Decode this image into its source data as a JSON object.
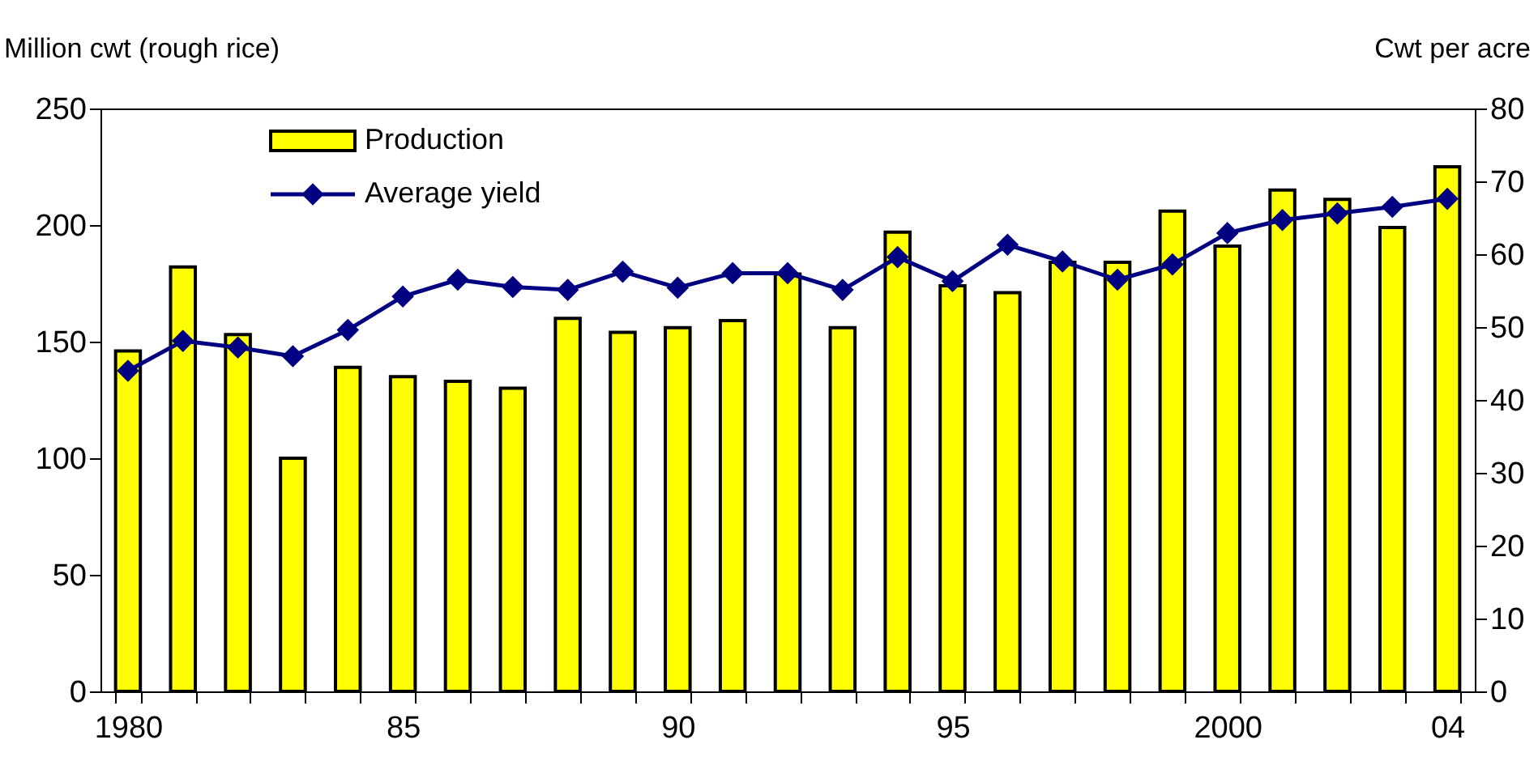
{
  "chart_data": {
    "type": "bar",
    "categories": [
      "1980",
      null,
      null,
      null,
      null,
      "85",
      null,
      null,
      null,
      null,
      "90",
      null,
      null,
      null,
      null,
      "95",
      null,
      null,
      null,
      null,
      "2000",
      null,
      null,
      null,
      "04"
    ],
    "ylabel": "Million cwt (rough rice)",
    "y2label": "Cwt per acre",
    "ylim": [
      0,
      250
    ],
    "yticks": [
      0,
      50,
      100,
      150,
      200,
      250
    ],
    "y2lim": [
      0,
      80
    ],
    "y2ticks": [
      0,
      10,
      20,
      30,
      40,
      50,
      60,
      70,
      80
    ],
    "legend": "top left",
    "marker": "diamond",
    "series": [
      {
        "name": "Production",
        "type": "bar",
        "color": "#ffff00",
        "values": [
          146,
          182,
          153,
          100,
          139,
          135,
          133,
          130,
          160,
          154,
          156,
          159,
          179,
          156,
          197,
          174,
          171,
          184,
          184,
          206,
          191,
          215,
          211,
          199,
          225
        ]
      },
      {
        "name": "Average yield",
        "type": "line",
        "axis": "y2",
        "color": "#000080",
        "values": [
          44.0,
          48.1,
          47.2,
          46.0,
          49.6,
          54.2,
          56.5,
          55.5,
          55.1,
          57.6,
          55.4,
          57.4,
          57.4,
          55.1,
          59.6,
          56.3,
          61.3,
          59.0,
          56.5,
          58.6,
          62.9,
          64.7,
          65.6,
          66.5,
          67.6
        ]
      }
    ]
  }
}
